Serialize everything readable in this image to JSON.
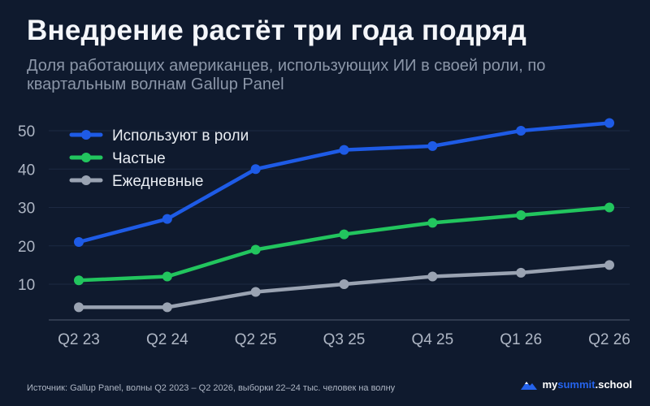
{
  "header": {
    "title": "Внедрение растёт три года подряд",
    "subtitle": "Доля работающих американцев, использующих ИИ в своей роли, по квартальным волнам Gallup Panel"
  },
  "footer": {
    "source": "Источник: Gallup Panel, волны Q2 2023 – Q2 2026, выборки 22–24 тыс. человек на волну",
    "brand_part1": "my",
    "brand_part2": "summit",
    "brand_part3": ".school"
  },
  "colors": {
    "background": "#0f1a2e",
    "series_1": "#1e5be6",
    "series_2": "#22c55e",
    "series_3": "#9aa3b2"
  },
  "chart_data": {
    "type": "line",
    "categories": [
      "Q2 23",
      "Q2 24",
      "Q2 25",
      "Q3 25",
      "Q4 25",
      "Q1 26",
      "Q2 26"
    ],
    "y_ticks": [
      10,
      20,
      30,
      40,
      50
    ],
    "ylim": [
      0,
      55
    ],
    "grid": true,
    "legend_position": "top-left",
    "series": [
      {
        "name": "Используют в роли",
        "color": "#1e5be6",
        "values": [
          21,
          27,
          40,
          45,
          46,
          50,
          52
        ]
      },
      {
        "name": "Частые",
        "color": "#22c55e",
        "values": [
          11,
          12,
          19,
          23,
          26,
          28,
          30
        ]
      },
      {
        "name": "Ежедневные",
        "color": "#9aa3b2",
        "values": [
          4,
          4,
          8,
          10,
          12,
          13,
          15
        ]
      }
    ]
  }
}
